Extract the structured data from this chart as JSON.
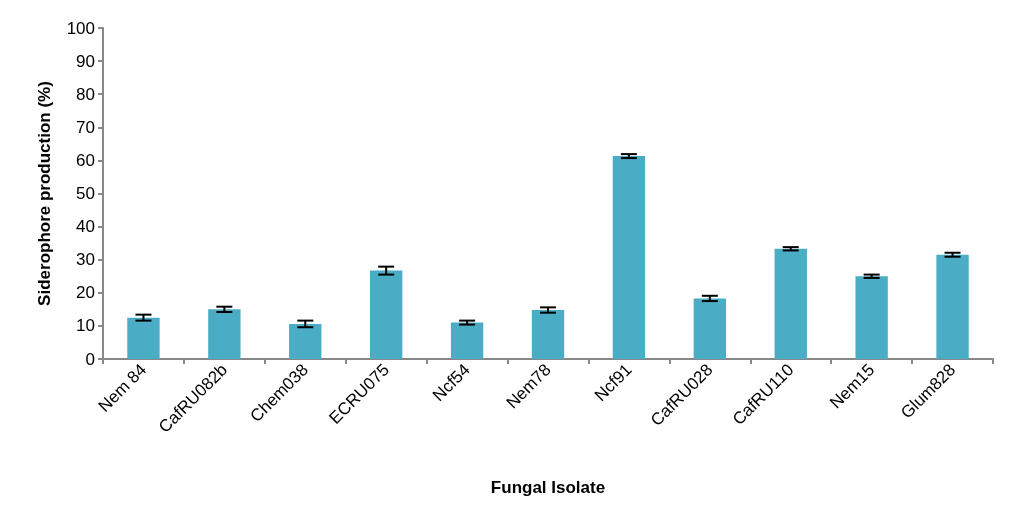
{
  "chart_data": {
    "type": "bar",
    "xlabel": "Fungal Isolate",
    "ylabel": "Siderophore production (%)",
    "categories": [
      "Nem 84",
      "CafRU082b",
      "Chem038",
      "ECRU075",
      "Ncf54",
      "Nem78",
      "Ncf91",
      "CafRU028",
      "CafRU110",
      "Nem15",
      "Glum828"
    ],
    "values": [
      12.5,
      15.0,
      10.6,
      26.7,
      11.0,
      14.8,
      61.3,
      18.3,
      33.3,
      25.0,
      31.5
    ],
    "errors": [
      0.9,
      0.8,
      1.0,
      1.2,
      0.6,
      0.8,
      0.6,
      0.8,
      0.5,
      0.5,
      0.6
    ],
    "color": "#4bacc6",
    "ylim": [
      0,
      100
    ],
    "yticks": [
      0,
      10,
      20,
      30,
      40,
      50,
      60,
      70,
      80,
      90,
      100
    ]
  }
}
